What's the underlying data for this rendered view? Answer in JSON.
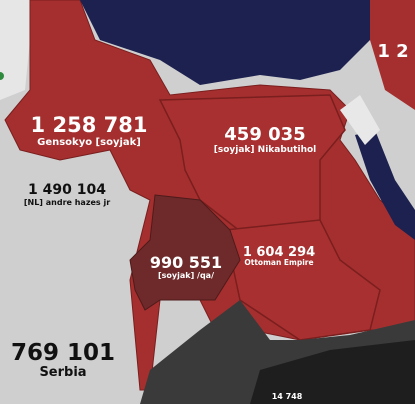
{
  "territories": [
    {
      "troops": "1 258 781",
      "name": "Gensokyo [soyjak]"
    },
    {
      "troops": "459 035",
      "name": "[soyjak] Nikabutihol"
    },
    {
      "troops": "1 490 104",
      "name": "[NL] andre hazes jr"
    },
    {
      "troops": "990 551",
      "name": "[soyjak] /qa/"
    },
    {
      "troops": "1 604 294",
      "name": "Ottoman Empire"
    },
    {
      "troops": "769 101",
      "name": "Serbia"
    },
    {
      "troops": "14 748"
    },
    {
      "troops": "1 2"
    }
  ]
}
